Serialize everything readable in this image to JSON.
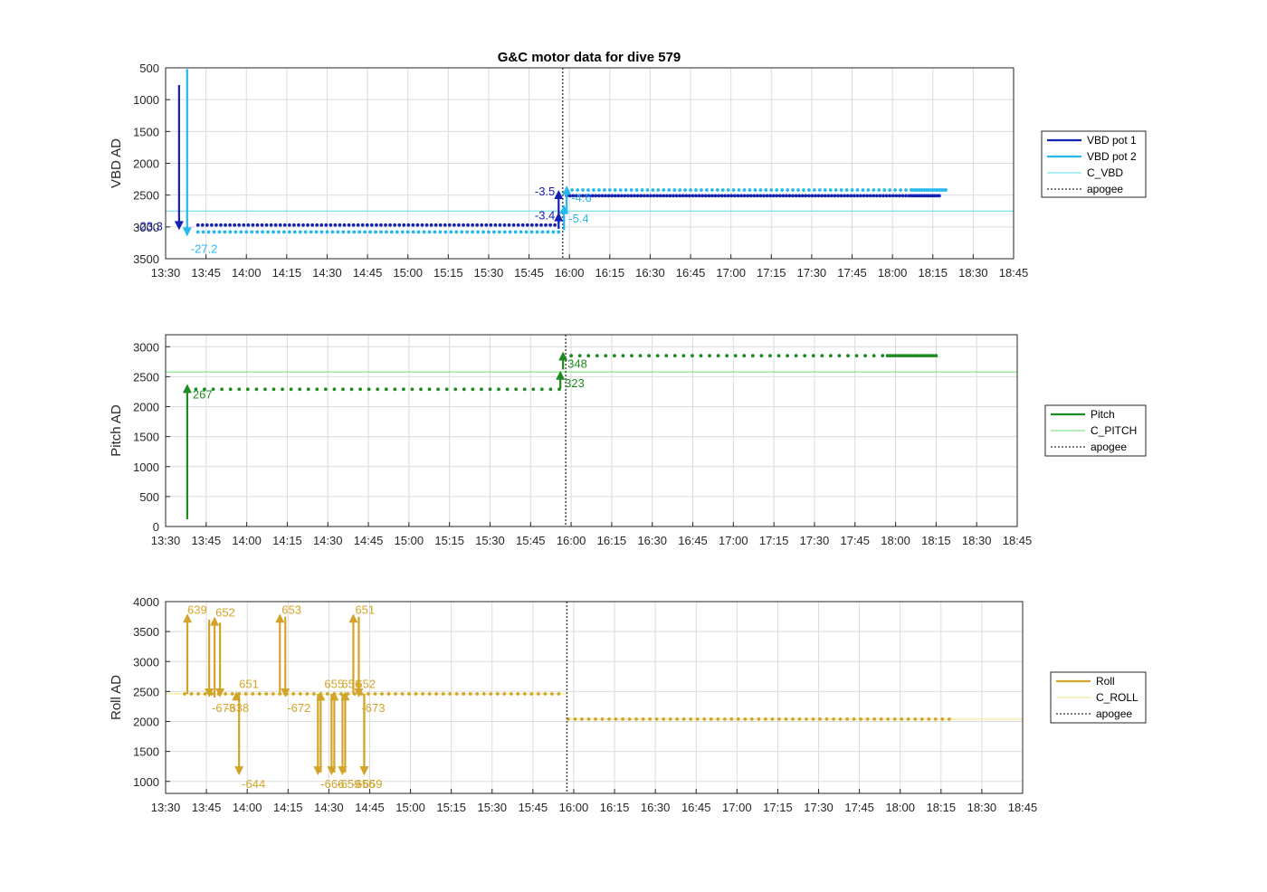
{
  "figure_title": "G&C motor data for dive 579",
  "colors": {
    "vbd1": "#1520b4",
    "vbd2": "#27b8ec",
    "cvbd": "#5cdce6",
    "pitch": "#1e8a22",
    "cpitch": "#6ee06e",
    "roll": "#d2a52a",
    "croll": "#f2e57c",
    "apogee": "#555555",
    "grid": "#dcdcdc",
    "axis": "#262626"
  },
  "chart_data": [
    {
      "type": "scatter",
      "ylabel": "VBD AD",
      "xtick_labels": [
        "13:30",
        "13:45",
        "14:00",
        "14:15",
        "14:30",
        "14:45",
        "15:00",
        "15:15",
        "15:30",
        "15:45",
        "16:00",
        "16:15",
        "16:30",
        "16:45",
        "17:00",
        "17:15",
        "17:30",
        "17:45",
        "18:00",
        "18:15",
        "18:30",
        "18:45"
      ],
      "xlim_minutes": [
        810,
        1125
      ],
      "ylim": [
        500,
        3500
      ],
      "y_reversed": true,
      "yticks": [
        500,
        1000,
        1500,
        2000,
        2500,
        3000,
        3500
      ],
      "grid": true,
      "legend": {
        "placement": "outside-right",
        "entries": [
          {
            "label": "VBD pot 1",
            "color_key": "vbd1",
            "style": "thick"
          },
          {
            "label": "VBD pot 2",
            "color_key": "vbd2",
            "style": "thick"
          },
          {
            "label": "C_VBD",
            "color_key": "cvbd",
            "style": "thin"
          },
          {
            "label": "apogee",
            "color_key": "apogee",
            "style": "dotted"
          }
        ]
      },
      "apogee_minute": 957.5,
      "reference_lines": [
        {
          "name": "C_VBD",
          "y": 2750,
          "color_key": "cvbd"
        }
      ],
      "series": [
        {
          "name": "VBD pot 1",
          "color_key": "vbd1",
          "segments": [
            {
              "x": [
                822,
                956
              ],
              "y": 2970,
              "step": 1.7
            },
            {
              "x": [
                959,
                1087
              ],
              "y": 2510,
              "step": 1.2
            },
            {
              "x": [
                1087,
                1098
              ],
              "y": 2510,
              "step": 0.8
            }
          ]
        },
        {
          "name": "VBD pot 2",
          "color_key": "vbd2",
          "segments": [
            {
              "x": [
                822,
                956
              ],
              "y": 3080,
              "step": 2.0
            },
            {
              "x": [
                959,
                1087
              ],
              "y": 2420,
              "step": 2.0
            },
            {
              "x": [
                1087,
                1100
              ],
              "y": 2420,
              "step": 0.8
            }
          ]
        }
      ],
      "moves": [
        {
          "x": 815,
          "y0": 770,
          "y1": 3050,
          "color_key": "vbd1",
          "label": "-23.3",
          "lx": -18,
          "ly": 0,
          "anchor": "end"
        },
        {
          "x": 818,
          "y0": 520,
          "y1": 3150,
          "color_key": "vbd2",
          "label": "-27.2",
          "lx": 4,
          "ly": 18,
          "anchor": "start"
        },
        {
          "x": 956,
          "y0": 2950,
          "y1": 2420,
          "color_key": "vbd1",
          "label": "-3.5",
          "lx": -4,
          "ly": 6,
          "anchor": "end"
        },
        {
          "x": 956,
          "y0": 3030,
          "y1": 2770,
          "color_key": "vbd1",
          "label": "-3.4",
          "lx": -4,
          "ly": 8,
          "anchor": "end"
        },
        {
          "x": 958,
          "y0": 3050,
          "y1": 2650,
          "color_key": "vbd2",
          "label": "-5.4",
          "lx": 5,
          "ly": 20,
          "anchor": "start"
        },
        {
          "x": 959,
          "y0": 2800,
          "y1": 2350,
          "color_key": "vbd2",
          "label": "-4.6",
          "lx": 5,
          "ly": 18,
          "anchor": "start"
        }
      ]
    },
    {
      "type": "scatter",
      "ylabel": "Pitch AD",
      "xtick_labels": [
        "13:30",
        "13:45",
        "14:00",
        "14:15",
        "14:30",
        "14:45",
        "15:00",
        "15:15",
        "15:30",
        "15:45",
        "16:00",
        "16:15",
        "16:30",
        "16:45",
        "17:00",
        "17:15",
        "17:30",
        "17:45",
        "18:00",
        "18:15",
        "18:30",
        "18:45"
      ],
      "xlim_minutes": [
        810,
        1125
      ],
      "ylim": [
        0,
        3200
      ],
      "y_reversed": false,
      "yticks": [
        0,
        500,
        1000,
        1500,
        2000,
        2500,
        3000
      ],
      "grid": true,
      "legend": {
        "placement": "outside-right",
        "entries": [
          {
            "label": "Pitch",
            "color_key": "pitch",
            "style": "thick"
          },
          {
            "label": "C_PITCH",
            "color_key": "cpitch",
            "style": "thin"
          },
          {
            "label": "apogee",
            "color_key": "apogee",
            "style": "dotted"
          }
        ]
      },
      "apogee_minute": 958,
      "reference_lines": [
        {
          "name": "C_PITCH",
          "y": 2580,
          "color_key": "cpitch"
        }
      ],
      "series": [
        {
          "name": "Pitch",
          "color_key": "pitch",
          "segments": [
            {
              "x": [
                818,
                956
              ],
              "y": 2290,
              "step": 3.2
            },
            {
              "x": [
                960,
                1077
              ],
              "y": 2850,
              "step": 3.2
            },
            {
              "x": [
                1077,
                1095
              ],
              "y": 2850,
              "step": 1.0
            }
          ]
        }
      ],
      "moves": [
        {
          "x": 818,
          "y0": 120,
          "y1": 2380,
          "color_key": "pitch",
          "label": "267",
          "lx": 6,
          "ly": 16,
          "anchor": "start"
        },
        {
          "x": 956,
          "y0": 2300,
          "y1": 2600,
          "color_key": "pitch",
          "label": "323",
          "lx": 5,
          "ly": 18,
          "anchor": "start"
        },
        {
          "x": 957,
          "y0": 2620,
          "y1": 2920,
          "color_key": "pitch",
          "label": "348",
          "lx": 5,
          "ly": 18,
          "anchor": "start"
        }
      ]
    },
    {
      "type": "scatter",
      "ylabel": "Roll AD",
      "xtick_labels": [
        "13:30",
        "13:45",
        "14:00",
        "14:15",
        "14:30",
        "14:45",
        "15:00",
        "15:15",
        "15:30",
        "15:45",
        "16:00",
        "16:15",
        "16:30",
        "16:45",
        "17:00",
        "17:15",
        "17:30",
        "17:45",
        "18:00",
        "18:15",
        "18:30",
        "18:45"
      ],
      "xlim_minutes": [
        810,
        1125
      ],
      "ylim": [
        800,
        4000
      ],
      "y_reversed": false,
      "yticks": [
        1000,
        1500,
        2000,
        2500,
        3000,
        3500,
        4000
      ],
      "grid": true,
      "legend": {
        "placement": "outside-right",
        "entries": [
          {
            "label": "Roll",
            "color_key": "roll",
            "style": "thick"
          },
          {
            "label": "C_ROLL",
            "color_key": "croll",
            "style": "thin"
          },
          {
            "label": "apogee",
            "color_key": "apogee",
            "style": "dotted"
          }
        ]
      },
      "apogee_minute": 957.5,
      "reference_lines": [
        {
          "name": "C_ROLL",
          "x": [
            810,
            957.5
          ],
          "y": 2460,
          "color_key": "croll"
        },
        {
          "name": "C_ROLL",
          "x": [
            957.5,
            1125
          ],
          "y": 2040,
          "color_key": "croll"
        }
      ],
      "series": [
        {
          "name": "Roll",
          "color_key": "roll",
          "segments": [
            {
              "x": [
                817,
                956
              ],
              "y": 2460,
              "step": 2.5
            },
            {
              "x": [
                958,
                1098
              ],
              "y": 2040,
              "step": 2.5
            }
          ]
        }
      ],
      "moves": [
        {
          "x": 818,
          "y0": 2460,
          "y1": 3800,
          "color_key": "roll",
          "label": "639",
          "lx": 0,
          "ly": 0,
          "anchor": "start"
        },
        {
          "x": 826,
          "y0": 3700,
          "y1": 2400,
          "color_key": "roll",
          "label": "-673",
          "lx": 3,
          "ly": 16,
          "anchor": "start"
        },
        {
          "x": 828,
          "y0": 2400,
          "y1": 3750,
          "color_key": "roll",
          "label": "652",
          "lx": 1,
          "ly": 0,
          "anchor": "start"
        },
        {
          "x": 830,
          "y0": 3650,
          "y1": 2400,
          "color_key": "roll",
          "label": "-638",
          "lx": 6,
          "ly": 16,
          "anchor": "start"
        },
        {
          "x": 836,
          "y0": 2400,
          "y1": 2500,
          "color_key": "roll",
          "label": "651",
          "lx": 3,
          "ly": -4,
          "anchor": "start"
        },
        {
          "x": 837,
          "y0": 2450,
          "y1": 1100,
          "color_key": "roll",
          "label": "-644",
          "lx": 3,
          "ly": 14,
          "anchor": "start"
        },
        {
          "x": 852,
          "y0": 2460,
          "y1": 3800,
          "color_key": "roll",
          "label": "653",
          "lx": 2,
          "ly": 0,
          "anchor": "start"
        },
        {
          "x": 854,
          "y0": 3750,
          "y1": 2400,
          "color_key": "roll",
          "label": "-672",
          "lx": 2,
          "ly": 16,
          "anchor": "start"
        },
        {
          "x": 866,
          "y0": 2460,
          "y1": 1100,
          "color_key": "roll",
          "label": "-666",
          "lx": 3,
          "ly": 14,
          "anchor": "start"
        },
        {
          "x": 867,
          "y0": 1150,
          "y1": 2500,
          "color_key": "roll",
          "label": "655",
          "lx": 4,
          "ly": -4,
          "anchor": "start"
        },
        {
          "x": 871,
          "y0": 2460,
          "y1": 1100,
          "color_key": "roll",
          "label": "-659",
          "lx": 6,
          "ly": 14,
          "anchor": "start"
        },
        {
          "x": 872,
          "y0": 1150,
          "y1": 2500,
          "color_key": "roll",
          "label": "656",
          "lx": 8,
          "ly": -4,
          "anchor": "start"
        },
        {
          "x": 875,
          "y0": 2460,
          "y1": 1100,
          "color_key": "roll",
          "label": "-656",
          "lx": 10,
          "ly": 14,
          "anchor": "start"
        },
        {
          "x": 876,
          "y0": 1150,
          "y1": 2500,
          "color_key": "roll",
          "label": "652",
          "lx": 12,
          "ly": -4,
          "anchor": "start"
        },
        {
          "x": 879,
          "y0": 2460,
          "y1": 3800,
          "color_key": "roll",
          "label": "651",
          "lx": 2,
          "ly": 0,
          "anchor": "start"
        },
        {
          "x": 881,
          "y0": 3750,
          "y1": 2400,
          "color_key": "roll",
          "label": "-673",
          "lx": 3,
          "ly": 16,
          "anchor": "start"
        },
        {
          "x": 883,
          "y0": 2460,
          "y1": 1100,
          "color_key": "roll",
          "label": "-659",
          "lx": -6,
          "ly": 14,
          "anchor": "start"
        },
        {
          "x": 883,
          "y0": 2460,
          "y1": 1100,
          "color_key": "roll",
          "label": "",
          "lx": 0,
          "ly": 0,
          "anchor": "start"
        },
        {
          "x": 883,
          "y0": 2460,
          "y1": 1100,
          "color_key": "roll",
          "label": "",
          "lx": 0,
          "ly": 0,
          "anchor": "start"
        },
        {
          "x": 883,
          "y0": 2460,
          "y1": 1100,
          "color_key": "roll",
          "label": "",
          "lx": 0,
          "ly": 0,
          "anchor": "start"
        },
        {
          "x": 883,
          "y0": 2460,
          "y1": 1100,
          "color_key": "roll",
          "label": "",
          "lx": 0,
          "ly": 0,
          "anchor": "start"
        },
        {
          "x": 883,
          "y0": 2460,
          "y1": 1100,
          "color_key": "roll",
          "label": "",
          "lx": 0,
          "ly": 0,
          "anchor": "start"
        },
        {
          "x": 883,
          "y0": 2460,
          "y1": 1100,
          "color_key": "roll",
          "label": "",
          "lx": 0,
          "ly": 0,
          "anchor": "start"
        },
        {
          "x": 883,
          "y0": 2460,
          "y1": 1100,
          "color_key": "roll",
          "label": "",
          "lx": 0,
          "ly": 0,
          "anchor": "start"
        },
        {
          "x": 883,
          "y0": 2460,
          "y1": 1100,
          "color_key": "roll",
          "label": "",
          "lx": 0,
          "ly": 0,
          "anchor": "start"
        }
      ]
    }
  ]
}
